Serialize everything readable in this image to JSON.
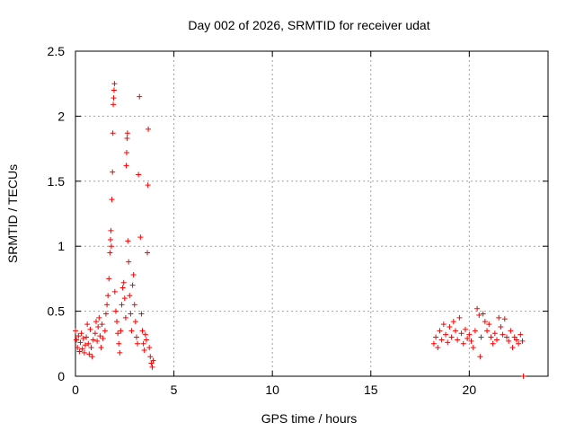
{
  "chart_data": {
    "type": "scatter",
    "title": "Day 002 of 2026, SRMTID for receiver udat",
    "xlabel": "GPS time / hours",
    "ylabel": "SRMTID / TECUs",
    "xlim": [
      0,
      24
    ],
    "ylim": [
      0,
      2.5
    ],
    "xticks": [
      0,
      5,
      10,
      15,
      20
    ],
    "yticks": [
      0,
      0.5,
      1,
      1.5,
      2,
      2.5
    ],
    "x_tick_labels": [
      "0",
      "5",
      "10",
      "15",
      "20"
    ],
    "y_tick_labels": [
      "0",
      "0.5",
      "1",
      "1.5",
      "2",
      "2.5"
    ],
    "grid": true,
    "marker": "+",
    "color": "#ff0000",
    "series": [
      {
        "name": "SRMTID",
        "points": [
          [
            0.0,
            0.35
          ],
          [
            0.05,
            0.28
          ],
          [
            0.1,
            0.22
          ],
          [
            0.15,
            0.31
          ],
          [
            0.2,
            0.19
          ],
          [
            0.25,
            0.26
          ],
          [
            0.3,
            0.33
          ],
          [
            0.35,
            0.21
          ],
          [
            0.4,
            0.29
          ],
          [
            0.45,
            0.18
          ],
          [
            0.5,
            0.24
          ],
          [
            0.55,
            0.3
          ],
          [
            0.6,
            0.4
          ],
          [
            0.65,
            0.25
          ],
          [
            0.7,
            0.17
          ],
          [
            0.75,
            0.36
          ],
          [
            0.8,
            0.22
          ],
          [
            0.85,
            0.15
          ],
          [
            0.9,
            0.28
          ],
          [
            1.0,
            0.33
          ],
          [
            1.05,
            0.42
          ],
          [
            1.1,
            0.27
          ],
          [
            1.15,
            0.38
          ],
          [
            1.2,
            0.45
          ],
          [
            1.25,
            0.31
          ],
          [
            1.3,
            0.22
          ],
          [
            1.35,
            0.4
          ],
          [
            1.4,
            0.29
          ],
          [
            1.5,
            0.35
          ],
          [
            1.55,
            0.48
          ],
          [
            1.6,
            0.55
          ],
          [
            1.65,
            0.62
          ],
          [
            1.7,
            0.75
          ],
          [
            1.75,
            0.95
          ],
          [
            1.78,
            1.05
          ],
          [
            1.8,
            1.12
          ],
          [
            1.82,
            1.0
          ],
          [
            1.85,
            1.36
          ],
          [
            1.88,
            1.57
          ],
          [
            1.9,
            1.87
          ],
          [
            1.92,
            2.09
          ],
          [
            1.94,
            2.14
          ],
          [
            1.96,
            2.2
          ],
          [
            1.98,
            2.25
          ],
          [
            2.0,
            0.65
          ],
          [
            2.05,
            0.5
          ],
          [
            2.1,
            0.42
          ],
          [
            2.15,
            0.33
          ],
          [
            2.2,
            0.25
          ],
          [
            2.25,
            0.18
          ],
          [
            2.3,
            0.35
          ],
          [
            2.35,
            0.55
          ],
          [
            2.4,
            0.68
          ],
          [
            2.45,
            0.72
          ],
          [
            2.5,
            0.6
          ],
          [
            2.55,
            0.45
          ],
          [
            2.58,
            1.62
          ],
          [
            2.6,
            1.72
          ],
          [
            2.62,
            1.83
          ],
          [
            2.64,
            1.87
          ],
          [
            2.66,
            1.04
          ],
          [
            2.7,
            0.88
          ],
          [
            2.75,
            0.62
          ],
          [
            2.8,
            0.48
          ],
          [
            2.85,
            0.35
          ],
          [
            2.9,
            0.7
          ],
          [
            2.95,
            0.78
          ],
          [
            3.0,
            0.55
          ],
          [
            3.05,
            0.42
          ],
          [
            3.1,
            0.3
          ],
          [
            3.15,
            0.25
          ],
          [
            3.2,
            1.55
          ],
          [
            3.25,
            2.15
          ],
          [
            3.3,
            1.07
          ],
          [
            3.35,
            0.48
          ],
          [
            3.4,
            0.35
          ],
          [
            3.45,
            0.25
          ],
          [
            3.5,
            0.2
          ],
          [
            3.55,
            0.32
          ],
          [
            3.6,
            0.28
          ],
          [
            3.65,
            0.95
          ],
          [
            3.68,
            1.47
          ],
          [
            3.7,
            1.9
          ],
          [
            3.75,
            0.22
          ],
          [
            3.8,
            0.15
          ],
          [
            3.85,
            0.1
          ],
          [
            3.9,
            0.07
          ],
          [
            3.95,
            0.12
          ],
          [
            18.2,
            0.25
          ],
          [
            18.3,
            0.3
          ],
          [
            18.4,
            0.22
          ],
          [
            18.5,
            0.35
          ],
          [
            18.6,
            0.28
          ],
          [
            18.7,
            0.4
          ],
          [
            18.8,
            0.32
          ],
          [
            18.9,
            0.26
          ],
          [
            19.0,
            0.38
          ],
          [
            19.1,
            0.3
          ],
          [
            19.2,
            0.42
          ],
          [
            19.3,
            0.35
          ],
          [
            19.4,
            0.28
          ],
          [
            19.5,
            0.45
          ],
          [
            19.6,
            0.33
          ],
          [
            19.7,
            0.25
          ],
          [
            19.8,
            0.36
          ],
          [
            19.9,
            0.29
          ],
          [
            20.0,
            0.32
          ],
          [
            20.1,
            0.27
          ],
          [
            20.2,
            0.22
          ],
          [
            20.3,
            0.35
          ],
          [
            20.4,
            0.52
          ],
          [
            20.5,
            0.47
          ],
          [
            20.55,
            0.15
          ],
          [
            20.6,
            0.3
          ],
          [
            20.7,
            0.48
          ],
          [
            20.8,
            0.42
          ],
          [
            20.9,
            0.35
          ],
          [
            21.0,
            0.4
          ],
          [
            21.1,
            0.3
          ],
          [
            21.2,
            0.25
          ],
          [
            21.3,
            0.33
          ],
          [
            21.4,
            0.28
          ],
          [
            21.5,
            0.45
          ],
          [
            21.6,
            0.38
          ],
          [
            21.7,
            0.32
          ],
          [
            21.8,
            0.44
          ],
          [
            21.9,
            0.3
          ],
          [
            22.0,
            0.27
          ],
          [
            22.1,
            0.35
          ],
          [
            22.2,
            0.22
          ],
          [
            22.3,
            0.3
          ],
          [
            22.4,
            0.28
          ],
          [
            22.5,
            0.25
          ],
          [
            22.6,
            0.32
          ],
          [
            22.7,
            0.27
          ],
          [
            22.75,
            0.0
          ]
        ]
      }
    ]
  }
}
